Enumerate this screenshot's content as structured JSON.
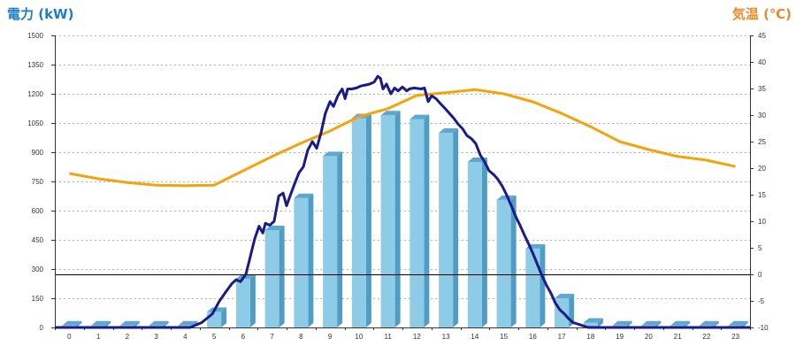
{
  "chart_data": {
    "type": "bar",
    "categories": [
      "0",
      "1",
      "2",
      "3",
      "4",
      "5",
      "6",
      "7",
      "8",
      "9",
      "10",
      "11",
      "12",
      "13",
      "14",
      "15",
      "16",
      "17",
      "18",
      "19",
      "20",
      "21",
      "22",
      "23"
    ],
    "xlim": [
      0,
      24
    ],
    "series": [
      {
        "type": "bar",
        "y_axis": "left",
        "values": [
          10,
          10,
          10,
          10,
          10,
          80,
          250,
          500,
          665,
          880,
          1075,
          1090,
          1070,
          1000,
          850,
          655,
          405,
          150,
          25,
          10,
          10,
          10,
          10,
          10
        ]
      },
      {
        "type": "line",
        "y_axis": "right",
        "values": [
          19.0,
          18.0,
          17.3,
          16.8,
          16.7,
          16.8,
          19.5,
          22.2,
          24.7,
          27.0,
          29.7,
          31.2,
          33.7,
          34.2,
          34.8,
          34.0,
          32.5,
          30.3,
          27.8,
          25.0,
          23.5,
          22.2,
          21.5,
          20.3
        ]
      },
      {
        "type": "line",
        "y_axis": "left",
        "x": [
          0,
          4.67,
          5.07,
          5.44,
          5.68,
          5.89,
          6.11,
          6.26,
          6.41,
          6.6,
          6.75,
          6.9,
          7.05,
          7.18,
          7.27,
          7.42,
          7.57,
          7.73,
          7.88,
          8.0,
          8.12,
          8.27,
          8.43,
          8.58,
          8.73,
          8.89,
          9.04,
          9.19,
          9.34,
          9.5,
          9.62,
          9.77,
          9.92,
          10.02,
          10.11,
          10.26,
          10.41,
          10.56,
          10.72,
          10.87,
          11.02,
          11.15,
          11.24,
          11.33,
          11.45,
          11.6,
          11.73,
          11.85,
          12.0,
          12.15,
          12.24,
          12.4,
          12.64,
          12.76,
          12.89,
          13.01,
          13.16,
          13.31,
          13.47,
          13.62,
          13.77,
          13.92,
          14.08,
          14.23,
          14.38,
          14.53,
          14.69,
          14.84,
          14.99,
          15.15,
          15.3,
          15.45,
          15.6,
          15.76,
          15.91,
          16.06,
          16.21,
          16.37,
          16.52,
          16.67,
          16.82,
          16.98,
          17.13,
          17.28,
          17.44,
          17.59,
          17.74,
          17.89,
          18.11,
          18.41,
          24
        ],
        "y": [
          0,
          0,
          25,
          70,
          135,
          180,
          225,
          245,
          235,
          275,
          365,
          455,
          520,
          485,
          535,
          525,
          545,
          675,
          690,
          625,
          675,
          735,
          795,
          825,
          910,
          955,
          920,
          1000,
          1100,
          1160,
          1135,
          1190,
          1225,
          1175,
          1225,
          1225,
          1230,
          1240,
          1245,
          1250,
          1260,
          1290,
          1280,
          1225,
          1250,
          1200,
          1230,
          1215,
          1235,
          1215,
          1225,
          1230,
          1225,
          1230,
          1160,
          1190,
          1175,
          1150,
          1125,
          1100,
          1075,
          1045,
          1020,
          985,
          970,
          945,
          885,
          850,
          805,
          785,
          760,
          725,
          680,
          625,
          570,
          525,
          475,
          425,
          375,
          320,
          265,
          215,
          175,
          125,
          90,
          70,
          45,
          25,
          15,
          0,
          0
        ]
      }
    ],
    "y_left": {
      "label": "電力 (kW)",
      "ylim": [
        0,
        1500
      ],
      "ticks": [
        0,
        150,
        300,
        450,
        600,
        750,
        900,
        1050,
        1200,
        1350,
        1500
      ]
    },
    "y_right": {
      "label": "気温 (℃)",
      "ylim": [
        -10,
        45
      ],
      "ticks": [
        -10,
        -5,
        0,
        5,
        10,
        15,
        20,
        25,
        30,
        35,
        40,
        45
      ]
    },
    "grid": true,
    "reference_line": {
      "y_axis": "right",
      "value": 0
    },
    "colors": {
      "power_title": "#1f7cc6",
      "temperature_title": "#ea8a2a",
      "bar_front": "#8dcbe7",
      "bar_side": "#4f9cc4",
      "bar_top": "#5ea7cf",
      "power_line": "#1a1a8c",
      "temperature_line": "#f5a20b",
      "zero_line": "#000000",
      "grid": "#b0b0b0",
      "axis": "#333333"
    }
  }
}
